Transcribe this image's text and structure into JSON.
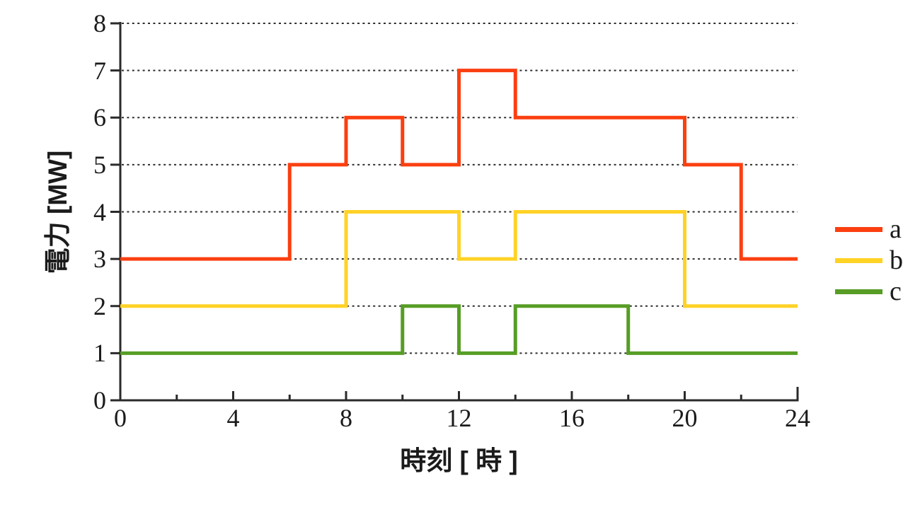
{
  "chart_data": {
    "type": "line",
    "subtype": "step",
    "title": "",
    "xlabel": "時刻 [ 時 ]",
    "ylabel": "電力 [MW]",
    "xlim": [
      0,
      24
    ],
    "ylim": [
      0,
      8
    ],
    "x_major_ticks": [
      0,
      4,
      8,
      12,
      16,
      20,
      24
    ],
    "x_minor_ticks": [
      2,
      6,
      10,
      14,
      18,
      22
    ],
    "x_tick_labels": [
      "0",
      "4",
      "8",
      "12",
      "16",
      "20",
      "24"
    ],
    "y_ticks": [
      0,
      1,
      2,
      3,
      4,
      5,
      6,
      7,
      8
    ],
    "y_tick_labels": [
      "0",
      "1",
      "2",
      "3",
      "4",
      "5",
      "6",
      "7",
      "8"
    ],
    "y_gridlines": [
      1,
      2,
      3,
      4,
      5,
      6,
      7,
      8
    ],
    "grid_style": "horizontal-dotted",
    "legend_position": "right",
    "colors": {
      "axis": "#2a2a2a",
      "grid": "#2e2e2e",
      "text": "#1b1b1b",
      "series_a": "#fb3f10",
      "series_b": "#ffd226",
      "series_c": "#579d25"
    },
    "series": [
      {
        "name": "a",
        "color": "#fb3f10",
        "steps": [
          [
            0,
            3
          ],
          [
            6,
            5
          ],
          [
            8,
            6
          ],
          [
            10,
            5
          ],
          [
            12,
            7
          ],
          [
            14,
            6
          ],
          [
            20,
            5
          ],
          [
            22,
            3
          ]
        ],
        "x_end": 24
      },
      {
        "name": "b",
        "color": "#ffd226",
        "steps": [
          [
            0,
            2
          ],
          [
            8,
            4
          ],
          [
            12,
            3
          ],
          [
            14,
            4
          ],
          [
            20,
            2
          ]
        ],
        "x_end": 24
      },
      {
        "name": "c",
        "color": "#579d25",
        "steps": [
          [
            0,
            1
          ],
          [
            10,
            2
          ],
          [
            12,
            1
          ],
          [
            14,
            2
          ],
          [
            18,
            1
          ]
        ],
        "x_end": 24
      }
    ]
  }
}
